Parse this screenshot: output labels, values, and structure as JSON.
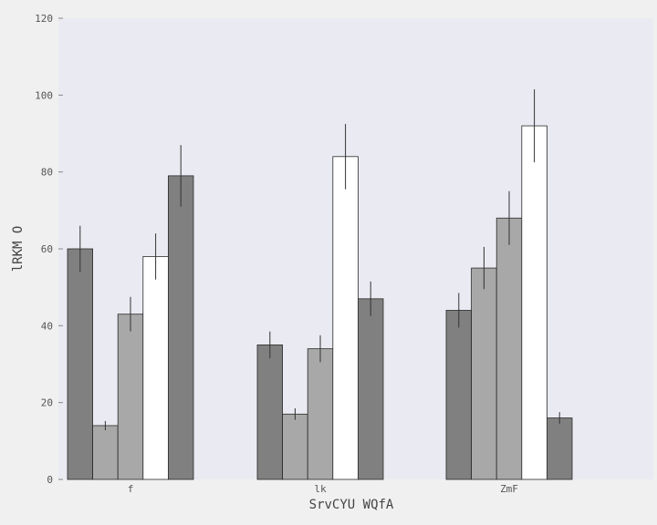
{
  "chart_data": {
    "type": "bar",
    "title": "",
    "xlabel": "SrvCYU  WQfA",
    "ylabel": "lRKM O",
    "categories": [
      "f",
      "lk",
      "ZmF"
    ],
    "ylim": [
      0,
      120
    ],
    "yticks": [
      0,
      20,
      40,
      60,
      80,
      100,
      120
    ],
    "grid": false,
    "legend": "none",
    "colors": {
      "background": "#f0f0f0",
      "plot_area": "#eaeaf2",
      "bar_outline": "#2a2a2a",
      "error_bar": "#333333"
    },
    "series": [
      {
        "color": "#808080",
        "values": [
          60,
          35,
          44
        ],
        "errors": [
          6,
          3.5,
          4.5
        ]
      },
      {
        "color": "#a8a8a8",
        "values": [
          14,
          17,
          55
        ],
        "errors": [
          1.2,
          1.5,
          5.5
        ]
      },
      {
        "color": "#a8a8a8",
        "values": [
          43,
          34,
          68
        ],
        "errors": [
          4.5,
          3.5,
          7
        ]
      },
      {
        "color": "#ffffff",
        "values": [
          58,
          84,
          92
        ],
        "errors": [
          6,
          8.5,
          9.5
        ]
      },
      {
        "color": "#808080",
        "values": [
          79,
          47,
          16
        ],
        "errors": [
          8,
          4.5,
          1.5
        ]
      }
    ]
  }
}
